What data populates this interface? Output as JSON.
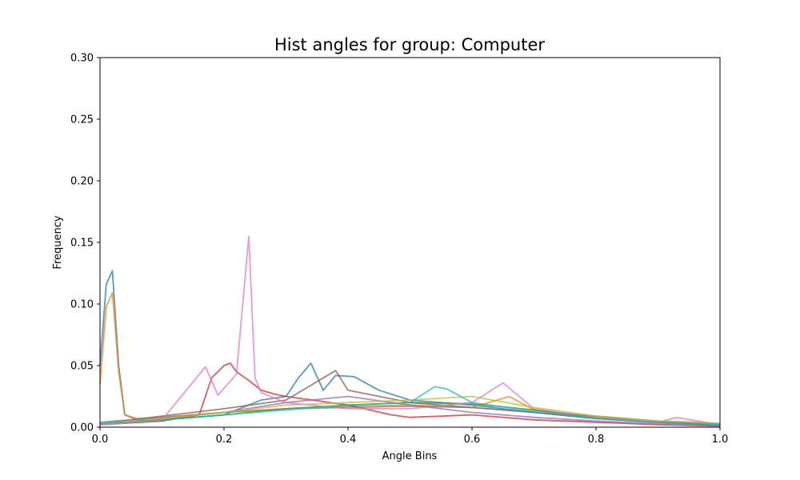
{
  "chart_data": {
    "type": "line",
    "title": "Hist angles for group: Computer",
    "xlabel": "Angle Bins",
    "ylabel": "Frequency",
    "xlim": [
      0.0,
      1.0
    ],
    "ylim": [
      0.0,
      0.3
    ],
    "x_ticks": [
      "0.0",
      "0.2",
      "0.4",
      "0.6",
      "0.8",
      "1.0"
    ],
    "y_ticks": [
      "0.00",
      "0.05",
      "0.10",
      "0.15",
      "0.20",
      "0.25",
      "0.30"
    ],
    "grid": false,
    "legend": "none",
    "series": [
      {
        "color": "#1f77b4",
        "x": [
          0.0,
          0.01,
          0.02,
          0.03,
          0.04,
          0.06,
          0.1,
          0.2,
          0.26,
          0.3,
          0.32,
          0.34,
          0.36,
          0.38,
          0.41,
          0.45,
          0.5,
          0.6,
          0.7,
          0.8,
          0.9,
          1.0
        ],
        "values": [
          0.05,
          0.116,
          0.127,
          0.05,
          0.01,
          0.006,
          0.006,
          0.01,
          0.022,
          0.025,
          0.04,
          0.052,
          0.03,
          0.042,
          0.041,
          0.03,
          0.022,
          0.018,
          0.012,
          0.007,
          0.004,
          0.002
        ]
      },
      {
        "color": "#ff7f0e",
        "x": [
          0.0,
          0.01,
          0.02,
          0.03,
          0.04,
          0.06,
          0.1,
          0.2,
          0.3,
          0.4,
          0.5,
          0.6,
          0.66,
          0.7,
          0.8,
          0.9,
          1.0
        ],
        "values": [
          0.035,
          0.098,
          0.109,
          0.045,
          0.01,
          0.007,
          0.008,
          0.012,
          0.015,
          0.017,
          0.018,
          0.016,
          0.025,
          0.014,
          0.008,
          0.004,
          0.002
        ]
      },
      {
        "color": "#2ca02c",
        "x": [
          0.0,
          0.1,
          0.2,
          0.3,
          0.4,
          0.5,
          0.6,
          0.7,
          0.8,
          0.9,
          1.0
        ],
        "values": [
          0.003,
          0.006,
          0.01,
          0.015,
          0.018,
          0.02,
          0.019,
          0.014,
          0.008,
          0.004,
          0.002
        ]
      },
      {
        "color": "#d62728",
        "x": [
          0.0,
          0.1,
          0.16,
          0.18,
          0.2,
          0.21,
          0.22,
          0.24,
          0.26,
          0.28,
          0.3,
          0.4,
          0.47,
          0.5,
          0.6,
          0.7,
          0.8,
          0.9,
          1.0
        ],
        "values": [
          0.002,
          0.005,
          0.01,
          0.04,
          0.05,
          0.052,
          0.045,
          0.038,
          0.03,
          0.027,
          0.025,
          0.018,
          0.01,
          0.008,
          0.01,
          0.006,
          0.004,
          0.002,
          0.001
        ]
      },
      {
        "color": "#9467bd",
        "x": [
          0.0,
          0.1,
          0.2,
          0.3,
          0.4,
          0.5,
          0.6,
          0.7,
          0.8,
          0.9,
          1.0
        ],
        "values": [
          0.002,
          0.007,
          0.012,
          0.02,
          0.025,
          0.018,
          0.012,
          0.008,
          0.005,
          0.003,
          0.001
        ]
      },
      {
        "color": "#8c564b",
        "x": [
          0.0,
          0.1,
          0.2,
          0.3,
          0.38,
          0.4,
          0.5,
          0.6,
          0.7,
          0.8,
          0.9,
          1.0
        ],
        "values": [
          0.003,
          0.009,
          0.015,
          0.022,
          0.046,
          0.03,
          0.02,
          0.016,
          0.012,
          0.007,
          0.004,
          0.002
        ]
      },
      {
        "color": "#e377c2",
        "x": [
          0.0,
          0.1,
          0.17,
          0.19,
          0.22,
          0.24,
          0.25,
          0.26,
          0.3,
          0.4,
          0.5,
          0.6,
          0.65,
          0.7,
          0.8,
          0.9,
          0.93,
          1.0
        ],
        "values": [
          0.002,
          0.006,
          0.049,
          0.026,
          0.043,
          0.155,
          0.04,
          0.028,
          0.02,
          0.015,
          0.015,
          0.02,
          0.036,
          0.015,
          0.008,
          0.004,
          0.008,
          0.002
        ]
      },
      {
        "color": "#7f7f7f",
        "x": [
          0.0,
          0.1,
          0.2,
          0.3,
          0.4,
          0.5,
          0.6,
          0.7,
          0.8,
          0.9,
          1.0
        ],
        "values": [
          0.004,
          0.008,
          0.012,
          0.015,
          0.016,
          0.017,
          0.016,
          0.012,
          0.009,
          0.005,
          0.003
        ]
      },
      {
        "color": "#bcbd22",
        "x": [
          0.0,
          0.1,
          0.2,
          0.3,
          0.4,
          0.5,
          0.6,
          0.7,
          0.8,
          0.9,
          0.97,
          1.0
        ],
        "values": [
          0.003,
          0.007,
          0.012,
          0.018,
          0.02,
          0.022,
          0.025,
          0.016,
          0.009,
          0.005,
          0.004,
          0.002
        ]
      },
      {
        "color": "#17becf",
        "x": [
          0.0,
          0.1,
          0.2,
          0.3,
          0.4,
          0.5,
          0.54,
          0.56,
          0.6,
          0.7,
          0.8,
          0.9,
          1.0
        ],
        "values": [
          0.003,
          0.006,
          0.01,
          0.014,
          0.018,
          0.02,
          0.033,
          0.031,
          0.02,
          0.013,
          0.007,
          0.004,
          0.002
        ]
      }
    ]
  }
}
